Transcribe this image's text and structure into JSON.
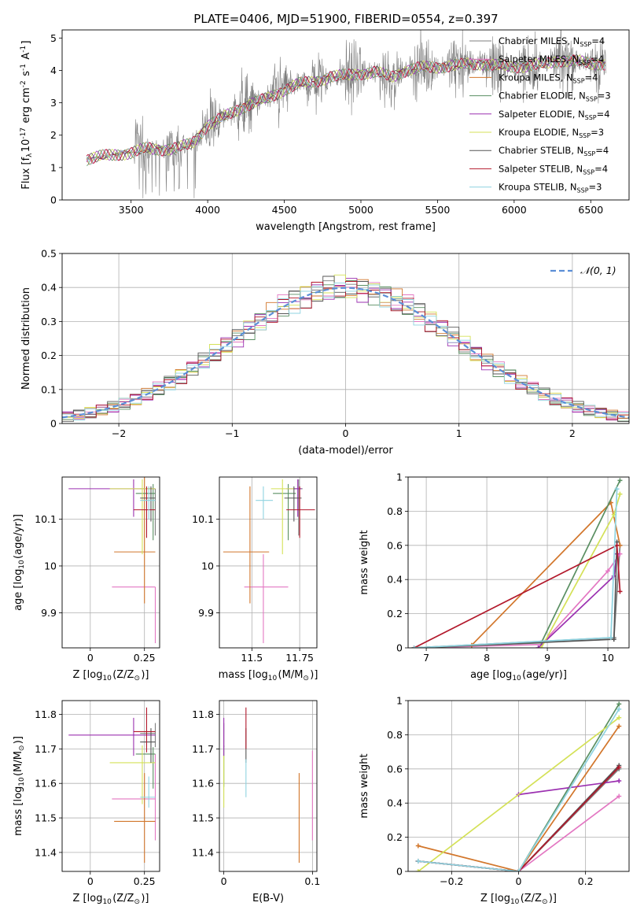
{
  "figure": {
    "title": "PLATE=0406, MJD=51900, FIBERID=0554, z=0.397"
  },
  "models": [
    {
      "name": "Chabrier MILES, N$_{SSP}$=4",
      "base": "Chabrier MILES, N",
      "sub": "SSP",
      "suffix": "=4",
      "color": "#7f7f7f"
    },
    {
      "name": "Salpeter MILES, N$_{SSP}$=4",
      "base": "Salpeter MILES, N",
      "sub": "SSP",
      "suffix": "=4",
      "color": "#e377c2"
    },
    {
      "name": "Kroupa MILES, N$_{SSP}$=4",
      "base": "Kroupa MILES, N",
      "sub": "SSP",
      "suffix": "=4",
      "color": "#d2762b"
    },
    {
      "name": "Chabrier ELODIE, N$_{SSP}$=3",
      "base": "Chabrier ELODIE, N",
      "sub": "SSP",
      "suffix": "=3",
      "color": "#5a8f62"
    },
    {
      "name": "Salpeter ELODIE, N$_{SSP}$=4",
      "base": "Salpeter ELODIE, N",
      "sub": "SSP",
      "suffix": "=4",
      "color": "#9b30b0"
    },
    {
      "name": "Kroupa ELODIE, N$_{SSP}$=3",
      "base": "Kroupa ELODIE, N",
      "sub": "SSP",
      "suffix": "=3",
      "color": "#d4e157"
    },
    {
      "name": "Chabrier STELIB, N$_{SSP}$=4",
      "base": "Chabrier STELIB, N",
      "sub": "SSP",
      "suffix": "=4",
      "color": "#555555"
    },
    {
      "name": "Salpeter STELIB, N$_{SSP}$=4",
      "base": "Salpeter STELIB, N",
      "sub": "SSP",
      "suffix": "=4",
      "color": "#b2182b"
    },
    {
      "name": "Kroupa STELIB, N$_{SSP}$=3",
      "base": "Kroupa STELIB, N",
      "sub": "SSP",
      "suffix": "=3",
      "color": "#8fd3e0"
    }
  ],
  "chart_data": [
    {
      "id": "spectrum",
      "type": "line",
      "title": "PLATE=0406, MJD=51900, FIBERID=0554, z=0.397",
      "xlabel": "wavelength [Angstrom, rest frame]",
      "ylabel": "Flux [f$_\\lambda$10$^{-17}$ erg cm$^{-2}$ s$^{-1}$ A$^{-1}$]",
      "xlim": [
        3050,
        6750
      ],
      "ylim": [
        0,
        5.25
      ],
      "xticks": [
        3500,
        4000,
        4500,
        5000,
        5500,
        6000,
        6500
      ],
      "yticks": [
        0,
        1,
        2,
        3,
        4,
        5
      ],
      "grid": false,
      "legend": "upper right",
      "data_envelope": {
        "x": [
          3210,
          3300,
          3400,
          3500,
          3600,
          3700,
          3800,
          3900,
          4000,
          4100,
          4200,
          4300,
          4400,
          4500,
          4600,
          4700,
          4800,
          4900,
          5000,
          5100,
          5200,
          5300,
          5400,
          5500,
          5600,
          5700,
          5800,
          5900,
          6000,
          6100,
          6200,
          6300,
          6400,
          6500,
          6600
        ],
        "y": [
          1.25,
          1.35,
          1.4,
          1.45,
          1.6,
          1.55,
          1.6,
          1.75,
          2.3,
          2.55,
          2.8,
          3.0,
          3.15,
          3.4,
          3.6,
          3.65,
          3.8,
          3.85,
          3.9,
          3.95,
          3.8,
          4.0,
          4.1,
          4.1,
          4.15,
          4.2,
          4.2,
          4.15,
          4.1,
          4.15,
          4.2,
          4.3,
          4.3,
          4.2,
          4.2
        ],
        "noise_start": 3520
      }
    },
    {
      "id": "residuals",
      "type": "histogram",
      "xlabel": "(data-model)/error",
      "ylabel": "Normed distribution",
      "xlim": [
        -2.5,
        2.5
      ],
      "ylim": [
        0,
        0.5
      ],
      "xticks": [
        -2,
        -1,
        0,
        1,
        2
      ],
      "yticks": [
        0.0,
        0.1,
        0.2,
        0.3,
        0.4,
        0.5
      ],
      "grid": true,
      "legend": "upper right",
      "reference": {
        "name": "$\\mathcal{N}(0,1)$",
        "label": "𝒩(0, 1)",
        "mean": 0,
        "sigma": 1,
        "color": "#5b8ed6"
      },
      "bin_width": 0.1,
      "bin_start": -2.5
    },
    {
      "id": "age-vs-Z",
      "type": "scatter",
      "xlabel": "Z [log$_{10}$(Z/Z$_\\odot$)]",
      "ylabel": "age  [log$_{10}$(age/yr)]",
      "xlim": [
        -0.13,
        0.32
      ],
      "ylim": [
        9.825,
        10.19
      ],
      "xticks": [
        0.0,
        0.25
      ],
      "yticks": [
        9.9,
        10.0,
        10.1
      ],
      "grid": true,
      "points": [
        {
          "x": 0.3,
          "y": 10.165,
          "xerr": [
            0.07,
            0.0
          ],
          "yerr": [
            0.1,
            0.0
          ]
        },
        {
          "x": 0.3,
          "y": 9.955,
          "xerr": [
            0.2,
            0.0
          ],
          "yerr": [
            0.12,
            0.0
          ]
        },
        {
          "x": 0.25,
          "y": 10.03,
          "xerr": [
            0.14,
            0.05
          ],
          "yerr": [
            0.11,
            0.16
          ]
        },
        {
          "x": 0.29,
          "y": 10.155,
          "xerr": [
            0.08,
            0.01
          ],
          "yerr": [
            0.1,
            0.02
          ]
        },
        {
          "x": 0.2,
          "y": 10.165,
          "xerr": [
            0.3,
            0.1
          ],
          "yerr": [
            0.06,
            0.02
          ]
        },
        {
          "x": 0.24,
          "y": 10.165,
          "xerr": [
            0.15,
            0.06
          ],
          "yerr": [
            0.14,
            0.02
          ]
        },
        {
          "x": 0.28,
          "y": 10.145,
          "xerr": [
            0.05,
            0.02
          ],
          "yerr": [
            0.05,
            0.025
          ]
        },
        {
          "x": 0.26,
          "y": 10.12,
          "xerr": [
            0.06,
            0.04
          ],
          "yerr": [
            0.06,
            0.05
          ]
        },
        {
          "x": 0.27,
          "y": 10.14,
          "xerr": [
            0.04,
            0.03
          ],
          "yerr": [
            0.04,
            0.03
          ]
        }
      ]
    },
    {
      "id": "age-vs-mass",
      "type": "scatter",
      "xlabel": "mass [log$_{10}$(M/M$_\\odot$)]",
      "ylabel": "",
      "xlim": [
        11.33,
        11.84
      ],
      "ylim": [
        9.825,
        10.19
      ],
      "xticks": [
        11.5,
        11.75
      ],
      "yticks": [
        9.9,
        10.0,
        10.1
      ],
      "grid": true,
      "points": [
        {
          "x": 11.745,
          "y": 10.165,
          "xerr": [
            0.03,
            0.02
          ],
          "yerr": [
            0.1,
            0.02
          ]
        },
        {
          "x": 11.56,
          "y": 9.955,
          "xerr": [
            0.1,
            0.13
          ],
          "yerr": [
            0.12,
            0.07
          ]
        },
        {
          "x": 11.49,
          "y": 10.03,
          "xerr": [
            0.14,
            0.1
          ],
          "yerr": [
            0.11,
            0.14
          ]
        },
        {
          "x": 11.69,
          "y": 10.155,
          "xerr": [
            0.08,
            0.04
          ],
          "yerr": [
            0.1,
            0.02
          ]
        },
        {
          "x": 11.74,
          "y": 10.165,
          "xerr": [
            0.06,
            0.02
          ],
          "yerr": [
            0.06,
            0.02
          ]
        },
        {
          "x": 11.66,
          "y": 10.165,
          "xerr": [
            0.06,
            0.06
          ],
          "yerr": [
            0.14,
            0.02
          ]
        },
        {
          "x": 11.72,
          "y": 10.145,
          "xerr": [
            0.05,
            0.04
          ],
          "yerr": [
            0.05,
            0.025
          ]
        },
        {
          "x": 11.75,
          "y": 10.12,
          "xerr": [
            0.07,
            0.08
          ],
          "yerr": [
            0.06,
            0.05
          ]
        },
        {
          "x": 11.56,
          "y": 10.14,
          "xerr": [
            0.04,
            0.05
          ],
          "yerr": [
            0.04,
            0.03
          ]
        }
      ]
    },
    {
      "id": "weight-vs-age",
      "type": "line",
      "xlabel": "age  [log$_{10}$(age/yr)]",
      "ylabel": "mass weight",
      "xlim": [
        6.7,
        10.35
      ],
      "ylim": [
        0,
        1.0
      ],
      "xticks": [
        7,
        8,
        9,
        10
      ],
      "yticks": [
        0.0,
        0.2,
        0.4,
        0.6,
        0.8,
        1.0
      ],
      "grid": true,
      "series": [
        {
          "x": [
            6.8,
            10.1,
            10.2
          ],
          "y": [
            0.0,
            0.06,
            0.6
          ]
        },
        {
          "x": [
            6.8,
            8.9,
            10.0,
            10.2
          ],
          "y": [
            0.0,
            0.02,
            0.45,
            0.55
          ]
        },
        {
          "x": [
            6.8,
            7.75,
            10.05,
            10.2
          ],
          "y": [
            0.0,
            0.015,
            0.85,
            0.6
          ]
        },
        {
          "x": [
            6.8,
            8.9,
            10.2
          ],
          "y": [
            0.0,
            0.03,
            0.98
          ]
        },
        {
          "x": [
            8.85,
            10.1,
            10.15
          ],
          "y": [
            0.0,
            0.42,
            0.55
          ]
        },
        {
          "x": [
            8.9,
            10.1,
            10.2
          ],
          "y": [
            0.0,
            0.78,
            0.9
          ]
        },
        {
          "x": [
            6.8,
            10.1,
            10.15
          ],
          "y": [
            0.0,
            0.05,
            0.62
          ]
        },
        {
          "x": [
            6.8,
            10.15,
            10.2
          ],
          "y": [
            0.0,
            0.6,
            0.33
          ]
        },
        {
          "x": [
            6.8,
            10.05,
            10.15
          ],
          "y": [
            0.0,
            0.06,
            0.93
          ]
        }
      ]
    },
    {
      "id": "mass-vs-Z",
      "type": "scatter",
      "xlabel": "Z [log$_{10}$(Z/Z$_\\odot$)]",
      "ylabel": "mass [log$_{10}$(M/M$_\\odot$)]",
      "xlim": [
        -0.13,
        0.32
      ],
      "ylim": [
        11.345,
        11.84
      ],
      "xticks": [
        0.0,
        0.25
      ],
      "yticks": [
        11.4,
        11.5,
        11.6,
        11.7,
        11.8
      ],
      "grid": true,
      "points": [
        {
          "x": 0.3,
          "y": 11.745,
          "xerr": [
            0.07,
            0.0
          ],
          "yerr": [
            0.04,
            0.03
          ]
        },
        {
          "x": 0.3,
          "y": 11.555,
          "xerr": [
            0.2,
            0.0
          ],
          "yerr": [
            0.12,
            0.13
          ]
        },
        {
          "x": 0.25,
          "y": 11.49,
          "xerr": [
            0.14,
            0.05
          ],
          "yerr": [
            0.12,
            0.14
          ]
        },
        {
          "x": 0.29,
          "y": 11.685,
          "xerr": [
            0.08,
            0.01
          ],
          "yerr": [
            0.1,
            0.02
          ]
        },
        {
          "x": 0.2,
          "y": 11.74,
          "xerr": [
            0.3,
            0.1
          ],
          "yerr": [
            0.06,
            0.05
          ]
        },
        {
          "x": 0.24,
          "y": 11.66,
          "xerr": [
            0.15,
            0.06
          ],
          "yerr": [
            0.12,
            0.05
          ]
        },
        {
          "x": 0.28,
          "y": 11.72,
          "xerr": [
            0.05,
            0.02
          ],
          "yerr": [
            0.06,
            0.04
          ]
        },
        {
          "x": 0.26,
          "y": 11.75,
          "xerr": [
            0.06,
            0.04
          ],
          "yerr": [
            0.06,
            0.07
          ]
        },
        {
          "x": 0.27,
          "y": 11.56,
          "xerr": [
            0.04,
            0.03
          ],
          "yerr": [
            0.03,
            0.06
          ]
        }
      ]
    },
    {
      "id": "mass-vs-EBV",
      "type": "scatter",
      "xlabel": "E(B-V)",
      "ylabel": "",
      "xlim": [
        -0.005,
        0.105
      ],
      "ylim": [
        11.345,
        11.84
      ],
      "xticks": [
        0.0,
        0.1
      ],
      "yticks": [
        11.4,
        11.5,
        11.6,
        11.7,
        11.8
      ],
      "grid": true,
      "points": [
        {
          "x": 0.0,
          "y": 11.745,
          "xerr": [
            0,
            0
          ],
          "yerr": [
            0.04,
            0.03
          ]
        },
        {
          "x": 0.1,
          "y": 11.555,
          "xerr": [
            0,
            0
          ],
          "yerr": [
            0.12,
            0.14
          ]
        },
        {
          "x": 0.085,
          "y": 11.49,
          "xerr": [
            0,
            0
          ],
          "yerr": [
            0.12,
            0.14
          ]
        },
        {
          "x": 0.0,
          "y": 11.69,
          "xerr": [
            0,
            0
          ],
          "yerr": [
            0.1,
            0.02
          ]
        },
        {
          "x": 0.0,
          "y": 11.74,
          "xerr": [
            0,
            0
          ],
          "yerr": [
            0.06,
            0.05
          ]
        },
        {
          "x": 0.0,
          "y": 11.62,
          "xerr": [
            0,
            0
          ],
          "yerr": [
            0.09,
            0.06
          ]
        },
        {
          "x": 0.025,
          "y": 11.72,
          "xerr": [
            0,
            0
          ],
          "yerr": [
            0.06,
            0.04
          ]
        },
        {
          "x": 0.025,
          "y": 11.75,
          "xerr": [
            0,
            0
          ],
          "yerr": [
            0.05,
            0.07
          ]
        },
        {
          "x": 0.025,
          "y": 11.62,
          "xerr": [
            0,
            0
          ],
          "yerr": [
            0.06,
            0.05
          ]
        }
      ]
    },
    {
      "id": "weight-vs-Z",
      "type": "line",
      "xlabel": "Z [log$_{10}$(Z/Z$_\\odot$)]",
      "ylabel": "mass weight",
      "xlim": [
        -0.33,
        0.33
      ],
      "ylim": [
        0,
        1.0
      ],
      "xticks": [
        -0.2,
        0.0,
        0.2
      ],
      "yticks": [
        0.0,
        0.2,
        0.4,
        0.6,
        0.8,
        1.0
      ],
      "grid": true,
      "series": [
        {
          "x": [
            -0.3,
            0.0,
            0.3
          ],
          "y": [
            0.06,
            0.0,
            0.6
          ]
        },
        {
          "x": [
            -0.3,
            0.0,
            0.3
          ],
          "y": [
            0.06,
            0.0,
            0.44
          ]
        },
        {
          "x": [
            -0.3,
            0.0,
            0.3
          ],
          "y": [
            0.15,
            0.0,
            0.85
          ]
        },
        {
          "x": [
            -0.3,
            0.0,
            0.3
          ],
          "y": [
            0.06,
            0.0,
            0.98
          ]
        },
        {
          "x": [
            0.0,
            0.3
          ],
          "y": [
            0.45,
            0.53
          ]
        },
        {
          "x": [
            -0.3,
            0.3
          ],
          "y": [
            0.0,
            0.9
          ]
        },
        {
          "x": [
            -0.3,
            0.0,
            0.3
          ],
          "y": [
            0.06,
            0.0,
            0.62
          ]
        },
        {
          "x": [
            -0.3,
            0.0,
            0.3
          ],
          "y": [
            0.06,
            0.0,
            0.61
          ]
        },
        {
          "x": [
            -0.3,
            0.0,
            0.3
          ],
          "y": [
            0.06,
            0.0,
            0.95
          ]
        }
      ]
    }
  ]
}
